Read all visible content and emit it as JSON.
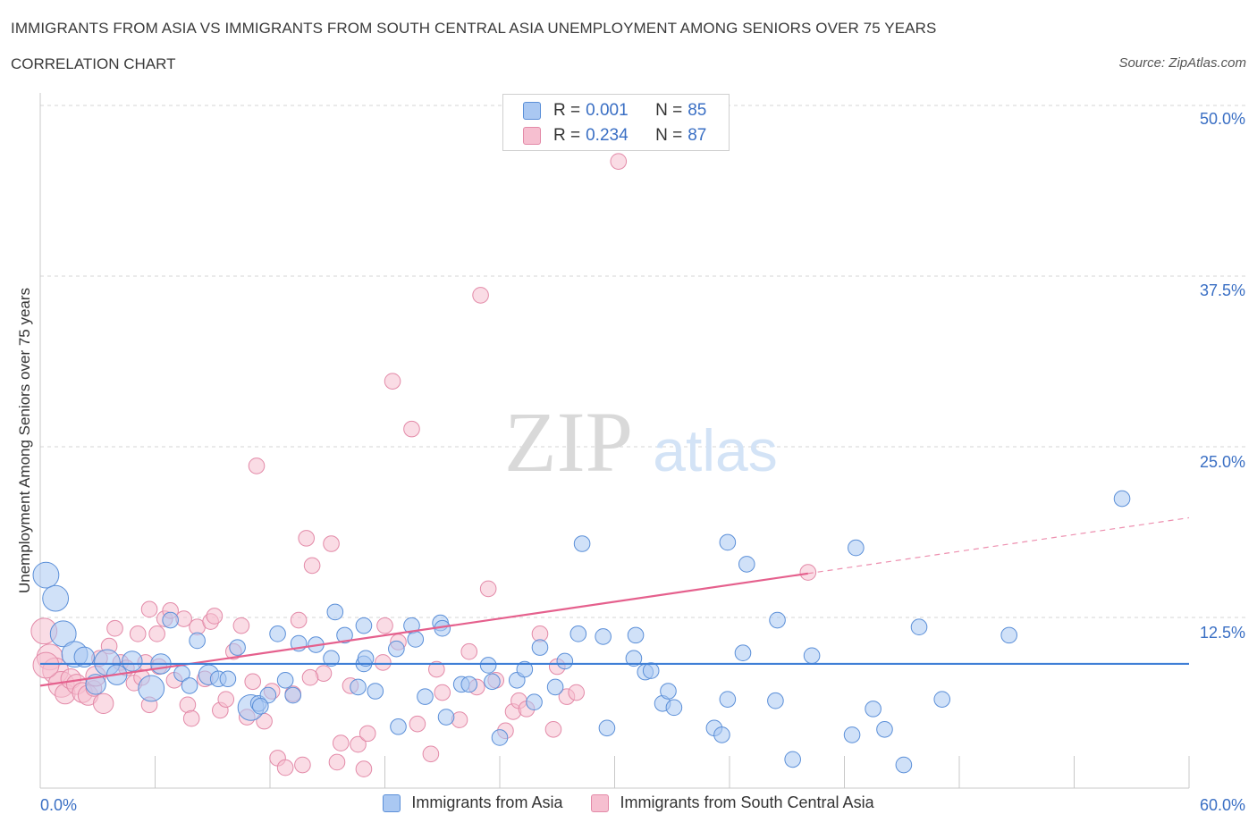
{
  "header": {
    "title": "IMMIGRANTS FROM ASIA VS IMMIGRANTS FROM SOUTH CENTRAL ASIA UNEMPLOYMENT AMONG SENIORS OVER 75 YEARS",
    "subtitle": "CORRELATION CHART",
    "source": "Source: ZipAtlas.com"
  },
  "watermark": {
    "zip": "ZIP",
    "atlas": "atlas"
  },
  "legend_top": {
    "rows": [
      {
        "r_key": "R =",
        "r_value": "0.001",
        "n_key": "N =",
        "n_value": "85"
      },
      {
        "r_key": "R =",
        "r_value": "0.234",
        "n_key": "N =",
        "n_value": "87"
      }
    ]
  },
  "legend_bottom": {
    "items": [
      "Immigrants from Asia",
      "Immigrants from South Central Asia"
    ]
  },
  "colors": {
    "blue_fill": "#aac8f2",
    "blue_stroke": "#5b8fd8",
    "blue_line": "#3f7fd6",
    "pink_fill": "#f6bfd0",
    "pink_stroke": "#e38aa8",
    "pink_line": "#e5608d",
    "tick_text": "#3a6fc4",
    "grid": "#d6d6d6"
  },
  "chart_data": {
    "type": "scatter",
    "title": "IMMIGRANTS FROM ASIA VS IMMIGRANTS FROM SOUTH CENTRAL ASIA UNEMPLOYMENT AMONG SENIORS OVER 75 YEARS",
    "xlabel": "",
    "ylabel": "Unemployment Among Seniors over 75 years",
    "xlim": [
      0,
      60
    ],
    "ylim": [
      0,
      50
    ],
    "x_tick_labels": [
      "0.0%",
      "60.0%"
    ],
    "y_tick_labels": [
      "12.5%",
      "25.0%",
      "37.5%",
      "50.0%"
    ],
    "y_ticks": [
      12.5,
      25,
      37.5,
      50
    ],
    "grid": true,
    "legend_position": "top-center",
    "series": [
      {
        "name": "Immigrants from Asia",
        "color": "#aac8f2",
        "R": 0.001,
        "N": 85,
        "trend": {
          "x0": 0,
          "y0": 9.1,
          "x1": 60,
          "y1": 9.1,
          "solid_until": 60
        },
        "points": [
          [
            0.3,
            15.6,
            1.8
          ],
          [
            0.8,
            13.9,
            1.8
          ],
          [
            1.2,
            11.3,
            1.8
          ],
          [
            1.8,
            9.8,
            1.8
          ],
          [
            2.3,
            9.6,
            1.4
          ],
          [
            2.9,
            7.6,
            1.4
          ],
          [
            3.5,
            9.2,
            1.8
          ],
          [
            4.0,
            8.3,
            1.4
          ],
          [
            4.8,
            9.3,
            1.4
          ],
          [
            5.8,
            7.3,
            1.8
          ],
          [
            6.3,
            9.1,
            1.4
          ],
          [
            6.8,
            12.3,
            1.1
          ],
          [
            7.4,
            8.4,
            1.1
          ],
          [
            7.8,
            7.5,
            1.1
          ],
          [
            8.2,
            10.8,
            1.1
          ],
          [
            8.8,
            8.3,
            1.4
          ],
          [
            9.3,
            8.0,
            1.1
          ],
          [
            9.8,
            8.0,
            1.1
          ],
          [
            10.3,
            10.3,
            1.1
          ],
          [
            11.0,
            5.9,
            1.8
          ],
          [
            11.4,
            6.2,
            1.1
          ],
          [
            11.9,
            6.8,
            1.1
          ],
          [
            12.4,
            11.3,
            1.1
          ],
          [
            12.8,
            7.9,
            1.1
          ],
          [
            13.2,
            6.8,
            1.1
          ],
          [
            13.5,
            10.6,
            1.1
          ],
          [
            14.4,
            10.5,
            1.1
          ],
          [
            15.2,
            9.5,
            1.1
          ],
          [
            15.4,
            12.9,
            1.1
          ],
          [
            15.9,
            11.2,
            1.1
          ],
          [
            16.6,
            7.4,
            1.1
          ],
          [
            16.9,
            11.9,
            1.1
          ],
          [
            16.9,
            9.1,
            1.1
          ],
          [
            17.0,
            9.5,
            1.1
          ],
          [
            17.5,
            7.1,
            1.1
          ],
          [
            18.6,
            10.2,
            1.1
          ],
          [
            18.7,
            4.5,
            1.1
          ],
          [
            19.4,
            11.9,
            1.1
          ],
          [
            19.6,
            10.9,
            1.1
          ],
          [
            20.1,
            6.7,
            1.1
          ],
          [
            20.9,
            12.1,
            1.1
          ],
          [
            21.0,
            11.7,
            1.1
          ],
          [
            21.2,
            5.2,
            1.1
          ],
          [
            22.0,
            7.6,
            1.1
          ],
          [
            22.4,
            7.6,
            1.1
          ],
          [
            23.4,
            9.0,
            1.1
          ],
          [
            23.6,
            7.8,
            1.1
          ],
          [
            24.0,
            3.7,
            1.1
          ],
          [
            24.9,
            7.9,
            1.1
          ],
          [
            25.3,
            8.7,
            1.1
          ],
          [
            25.8,
            6.3,
            1.1
          ],
          [
            26.1,
            10.3,
            1.1
          ],
          [
            26.9,
            7.4,
            1.1
          ],
          [
            27.4,
            9.3,
            1.1
          ],
          [
            28.1,
            11.3,
            1.1
          ],
          [
            28.3,
            17.9,
            1.1
          ],
          [
            29.4,
            11.1,
            1.1
          ],
          [
            29.6,
            4.4,
            1.1
          ],
          [
            31.0,
            9.5,
            1.1
          ],
          [
            31.1,
            11.2,
            1.1
          ],
          [
            31.6,
            8.5,
            1.1
          ],
          [
            31.9,
            8.6,
            1.1
          ],
          [
            32.5,
            6.2,
            1.1
          ],
          [
            32.8,
            7.1,
            1.1
          ],
          [
            33.1,
            5.9,
            1.1
          ],
          [
            35.2,
            4.4,
            1.1
          ],
          [
            35.6,
            3.9,
            1.1
          ],
          [
            35.9,
            6.5,
            1.1
          ],
          [
            35.9,
            18.0,
            1.1
          ],
          [
            36.9,
            16.4,
            1.1
          ],
          [
            36.7,
            9.9,
            1.1
          ],
          [
            38.5,
            12.3,
            1.1
          ],
          [
            38.4,
            6.4,
            1.1
          ],
          [
            39.3,
            2.1,
            1.1
          ],
          [
            40.3,
            9.7,
            1.1
          ],
          [
            42.6,
            17.6,
            1.1
          ],
          [
            42.4,
            3.9,
            1.1
          ],
          [
            43.5,
            5.8,
            1.1
          ],
          [
            44.1,
            4.3,
            1.1
          ],
          [
            45.1,
            1.7,
            1.1
          ],
          [
            45.9,
            11.8,
            1.1
          ],
          [
            47.1,
            6.5,
            1.1
          ],
          [
            50.6,
            11.2,
            1.1
          ],
          [
            56.5,
            21.2,
            1.1
          ],
          [
            11.5,
            6.0,
            1.1
          ]
        ]
      },
      {
        "name": "Immigrants from South Central Asia",
        "color": "#f6bfd0",
        "R": 0.234,
        "N": 87,
        "trend": {
          "x0": 0,
          "y0": 7.5,
          "x1": 60,
          "y1": 19.8,
          "solid_until": 40.1
        },
        "points": [
          [
            0.2,
            11.5,
            1.8
          ],
          [
            0.5,
            9.6,
            1.8
          ],
          [
            0.8,
            8.6,
            1.8
          ],
          [
            1.1,
            7.6,
            1.8
          ],
          [
            1.3,
            6.9,
            1.4
          ],
          [
            1.6,
            8.0,
            1.4
          ],
          [
            1.9,
            7.6,
            1.4
          ],
          [
            2.2,
            7.0,
            1.4
          ],
          [
            2.5,
            6.8,
            1.4
          ],
          [
            2.8,
            7.3,
            1.1
          ],
          [
            3.3,
            6.2,
            1.4
          ],
          [
            3.6,
            10.4,
            1.1
          ],
          [
            3.9,
            11.7,
            1.1
          ],
          [
            4.2,
            9.2,
            1.1
          ],
          [
            4.5,
            8.8,
            1.1
          ],
          [
            4.9,
            7.7,
            1.1
          ],
          [
            5.1,
            11.3,
            1.1
          ],
          [
            5.3,
            8.1,
            1.1
          ],
          [
            5.5,
            9.2,
            1.1
          ],
          [
            5.7,
            6.1,
            1.1
          ],
          [
            6.1,
            11.3,
            1.1
          ],
          [
            6.5,
            12.4,
            1.1
          ],
          [
            6.8,
            13.0,
            1.1
          ],
          [
            7.0,
            7.9,
            1.1
          ],
          [
            7.5,
            12.4,
            1.1
          ],
          [
            7.7,
            6.1,
            1.1
          ],
          [
            7.9,
            5.1,
            1.1
          ],
          [
            8.2,
            11.8,
            1.1
          ],
          [
            8.6,
            8.0,
            1.1
          ],
          [
            8.9,
            12.2,
            1.1
          ],
          [
            9.1,
            12.6,
            1.1
          ],
          [
            9.4,
            5.7,
            1.1
          ],
          [
            9.7,
            6.5,
            1.1
          ],
          [
            10.1,
            10.0,
            1.1
          ],
          [
            10.5,
            11.9,
            1.1
          ],
          [
            10.8,
            5.2,
            1.1
          ],
          [
            11.1,
            7.8,
            1.1
          ],
          [
            11.3,
            23.6,
            1.1
          ],
          [
            11.7,
            4.9,
            1.1
          ],
          [
            12.1,
            7.1,
            1.1
          ],
          [
            12.4,
            2.2,
            1.1
          ],
          [
            12.8,
            1.5,
            1.1
          ],
          [
            13.2,
            6.9,
            1.1
          ],
          [
            13.5,
            12.3,
            1.1
          ],
          [
            13.7,
            1.7,
            1.1
          ],
          [
            13.9,
            18.3,
            1.1
          ],
          [
            14.2,
            16.3,
            1.1
          ],
          [
            14.8,
            8.4,
            1.1
          ],
          [
            15.2,
            17.9,
            1.1
          ],
          [
            15.5,
            1.9,
            1.1
          ],
          [
            15.7,
            3.3,
            1.1
          ],
          [
            16.2,
            7.5,
            1.1
          ],
          [
            16.6,
            3.2,
            1.1
          ],
          [
            16.9,
            1.4,
            1.1
          ],
          [
            17.1,
            4.0,
            1.1
          ],
          [
            17.9,
            9.2,
            1.1
          ],
          [
            18.0,
            11.9,
            1.1
          ],
          [
            18.4,
            29.8,
            1.1
          ],
          [
            18.7,
            10.7,
            1.1
          ],
          [
            19.4,
            26.3,
            1.1
          ],
          [
            19.7,
            4.7,
            1.1
          ],
          [
            20.4,
            2.5,
            1.1
          ],
          [
            20.7,
            8.7,
            1.1
          ],
          [
            21.0,
            7.0,
            1.1
          ],
          [
            21.9,
            5.0,
            1.1
          ],
          [
            22.4,
            10.0,
            1.1
          ],
          [
            22.8,
            7.4,
            1.1
          ],
          [
            23.0,
            36.1,
            1.1
          ],
          [
            23.4,
            14.6,
            1.1
          ],
          [
            23.8,
            7.9,
            1.1
          ],
          [
            24.3,
            4.2,
            1.1
          ],
          [
            24.7,
            5.6,
            1.1
          ],
          [
            25.0,
            6.4,
            1.1
          ],
          [
            25.4,
            5.8,
            1.1
          ],
          [
            26.1,
            11.3,
            1.1
          ],
          [
            26.8,
            4.3,
            1.1
          ],
          [
            27.0,
            8.9,
            1.1
          ],
          [
            27.5,
            6.7,
            1.1
          ],
          [
            28.0,
            7.0,
            1.1
          ],
          [
            30.2,
            45.9,
            1.1
          ],
          [
            40.1,
            15.8,
            1.1
          ],
          [
            5.7,
            13.1,
            1.1
          ],
          [
            6.2,
            8.9,
            1.1
          ],
          [
            2.9,
            8.2,
            1.4
          ],
          [
            0.3,
            9.0,
            1.8
          ],
          [
            3.1,
            9.5,
            1.1
          ],
          [
            14.1,
            8.1,
            1.1
          ]
        ]
      }
    ]
  }
}
